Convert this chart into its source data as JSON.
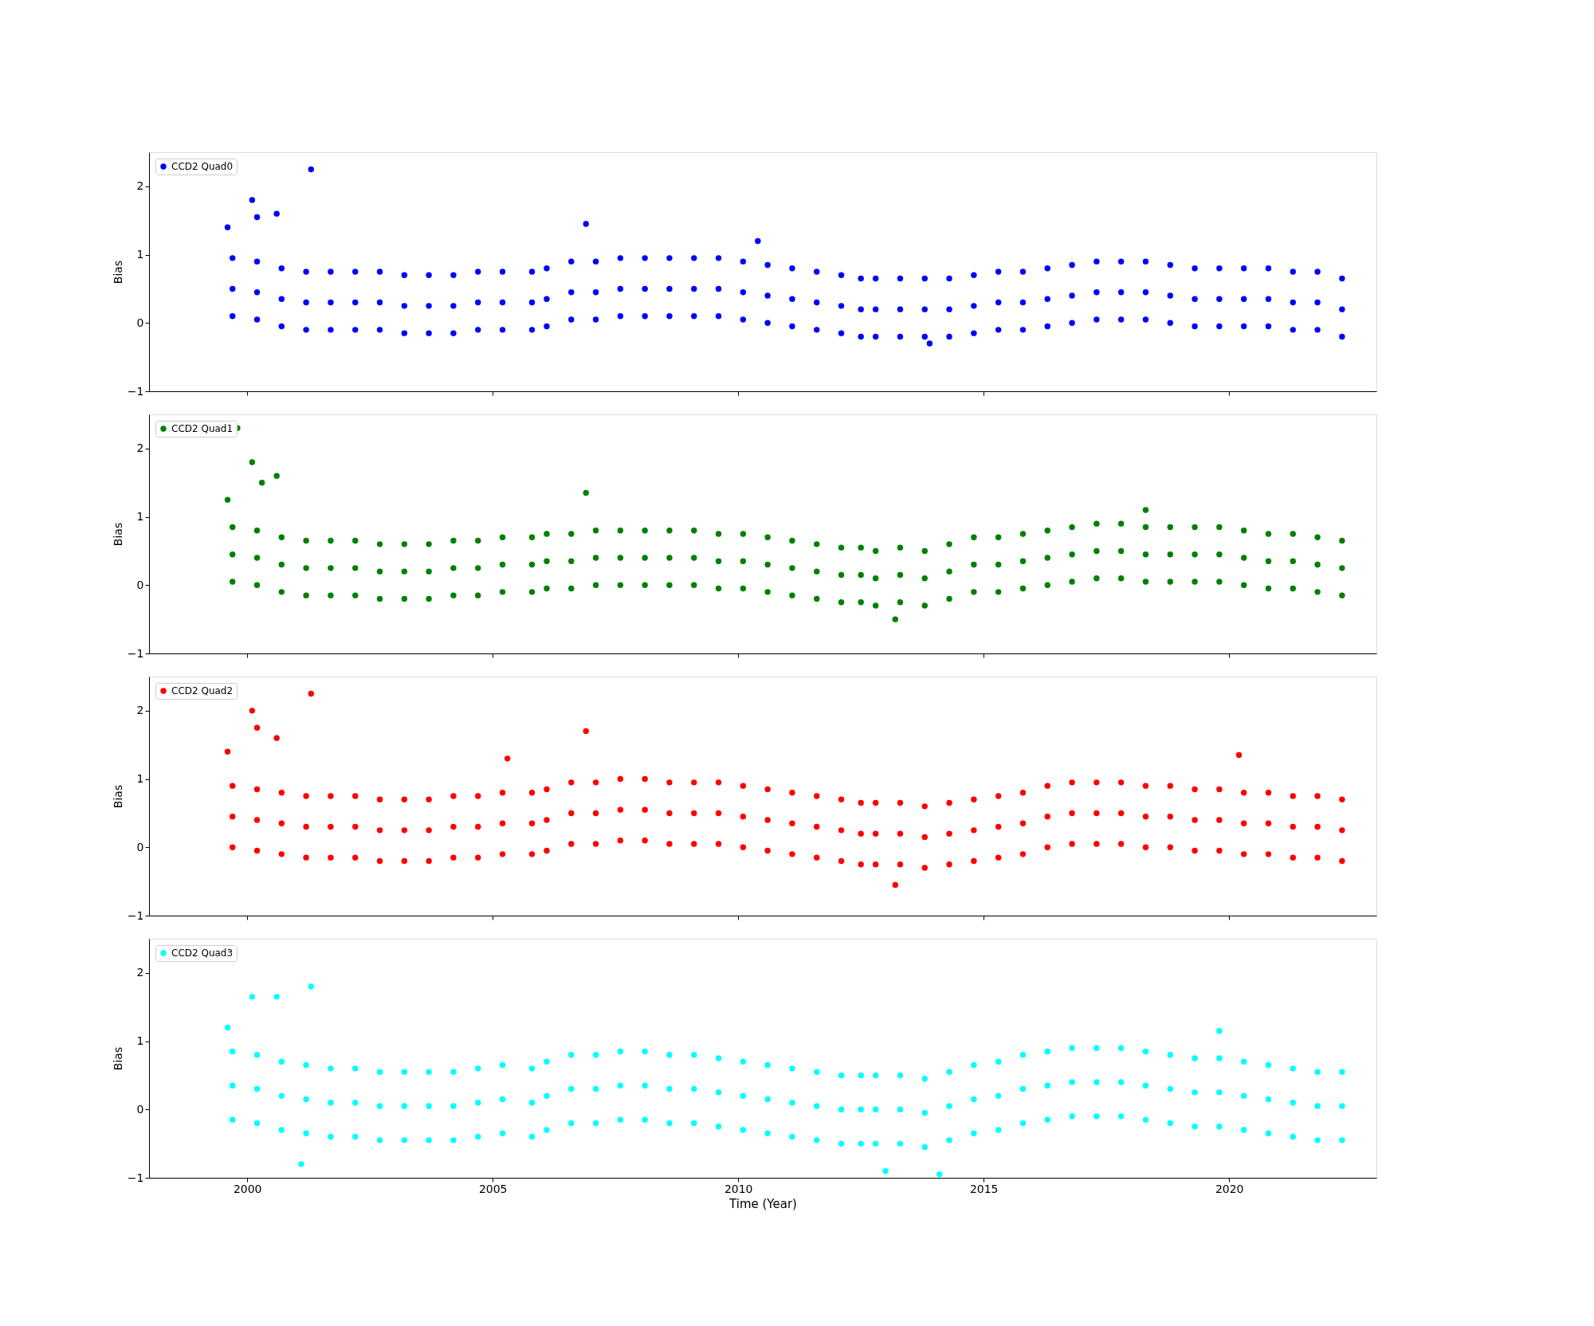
{
  "chart_data": [
    {
      "type": "scatter",
      "ylabel": "Bias",
      "xlim": [
        1998,
        2023
      ],
      "xticks": [
        2000,
        2005,
        2010,
        2015,
        2020
      ],
      "ylim": [
        -1,
        2.5
      ],
      "yticks": [
        -1,
        0,
        1,
        2
      ],
      "grid": false,
      "legend": "top left",
      "marker": "circle",
      "tick_labels": "y",
      "series": [
        {
          "name": "CCD2 Quad0",
          "color": "#0000ff",
          "x": [
            1999.7,
            2000.2,
            2000.7,
            2001.2,
            2001.7,
            2002.2,
            2002.7,
            2003.2,
            2003.7,
            2004.2,
            2004.7,
            2005.2,
            2005.8,
            2006.1,
            2006.6,
            2007.1,
            2007.6,
            2008.1,
            2008.6,
            2009.1,
            2009.6,
            2010.1,
            2010.6,
            2011.1,
            2011.6,
            2012.1,
            2012.5,
            2012.8,
            2013.3,
            2013.8,
            2014.3,
            2014.8,
            2015.3,
            2015.8,
            2016.3,
            2016.8,
            2017.3,
            2017.8,
            2018.3,
            2018.8,
            2019.3,
            2019.8,
            2020.3,
            2020.8,
            2021.3,
            2021.8,
            2022.3,
            1999.7,
            2000.2,
            2000.7,
            2001.2,
            2001.7,
            2002.2,
            2002.7,
            2003.2,
            2003.7,
            2004.2,
            2004.7,
            2005.2,
            2005.8,
            2006.1,
            2006.6,
            2007.1,
            2007.6,
            2008.1,
            2008.6,
            2009.1,
            2009.6,
            2010.1,
            2010.6,
            2011.1,
            2011.6,
            2012.1,
            2012.5,
            2012.8,
            2013.3,
            2013.8,
            2014.3,
            2014.8,
            2015.3,
            2015.8,
            2016.3,
            2016.8,
            2017.3,
            2017.8,
            2018.3,
            2018.8,
            2019.3,
            2019.8,
            2020.3,
            2020.8,
            2021.3,
            2021.8,
            2022.3,
            1999.7,
            2000.2,
            2000.7,
            2001.2,
            2001.7,
            2002.2,
            2002.7,
            2003.2,
            2003.7,
            2004.2,
            2004.7,
            2005.2,
            2005.8,
            2006.1,
            2006.6,
            2007.1,
            2007.6,
            2008.1,
            2008.6,
            2009.1,
            2009.6,
            2010.1,
            2010.6,
            2011.1,
            2011.6,
            2012.1,
            2012.5,
            2012.8,
            2013.3,
            2013.8,
            2014.3,
            2014.8,
            2015.3,
            2015.8,
            2016.3,
            2016.8,
            2017.3,
            2017.8,
            2018.3,
            2018.8,
            2019.3,
            2019.8,
            2020.3,
            2020.8,
            2021.3,
            2021.8,
            2022.3,
            1999.6,
            2000.1,
            2000.2,
            2000.6,
            2001.3,
            2006.9,
            2010.4,
            2013.9
          ],
          "values": [
            0.95,
            0.9,
            0.8,
            0.75,
            0.75,
            0.75,
            0.75,
            0.7,
            0.7,
            0.7,
            0.75,
            0.75,
            0.75,
            0.8,
            0.9,
            0.9,
            0.95,
            0.95,
            0.95,
            0.95,
            0.95,
            0.9,
            0.85,
            0.8,
            0.75,
            0.7,
            0.65,
            0.65,
            0.65,
            0.65,
            0.65,
            0.7,
            0.75,
            0.75,
            0.8,
            0.85,
            0.9,
            0.9,
            0.9,
            0.85,
            0.8,
            0.8,
            0.8,
            0.8,
            0.75,
            0.75,
            0.65,
            0.5,
            0.45,
            0.35,
            0.3,
            0.3,
            0.3,
            0.3,
            0.25,
            0.25,
            0.25,
            0.3,
            0.3,
            0.3,
            0.35,
            0.45,
            0.45,
            0.5,
            0.5,
            0.5,
            0.5,
            0.5,
            0.45,
            0.4,
            0.35,
            0.3,
            0.25,
            0.2,
            0.2,
            0.2,
            0.2,
            0.2,
            0.25,
            0.3,
            0.3,
            0.35,
            0.4,
            0.45,
            0.45,
            0.45,
            0.4,
            0.35,
            0.35,
            0.35,
            0.35,
            0.3,
            0.3,
            0.2,
            0.1,
            0.05,
            -0.05,
            -0.1,
            -0.1,
            -0.1,
            -0.1,
            -0.15,
            -0.15,
            -0.15,
            -0.1,
            -0.1,
            -0.1,
            -0.05,
            0.05,
            0.05,
            0.1,
            0.1,
            0.1,
            0.1,
            0.1,
            0.05,
            0,
            -0.05,
            -0.1,
            -0.15,
            -0.2,
            -0.2,
            -0.2,
            -0.2,
            -0.2,
            -0.15,
            -0.1,
            -0.1,
            -0.05,
            0,
            0.05,
            0.05,
            0.05,
            0,
            -0.05,
            -0.05,
            -0.05,
            -0.05,
            -0.1,
            -0.1,
            -0.2,
            1.4,
            1.8,
            1.55,
            1.6,
            2.25,
            1.45,
            1.2,
            -0.3
          ]
        }
      ]
    },
    {
      "type": "scatter",
      "ylabel": "Bias",
      "xlim": [
        1998,
        2023
      ],
      "xticks": [
        2000,
        2005,
        2010,
        2015,
        2020
      ],
      "ylim": [
        -1,
        2.5
      ],
      "yticks": [
        -1,
        0,
        1,
        2
      ],
      "grid": false,
      "legend": "top left",
      "marker": "circle",
      "tick_labels": "y",
      "series": [
        {
          "name": "CCD2 Quad1",
          "color": "#008000",
          "x": [
            1999.7,
            2000.2,
            2000.7,
            2001.2,
            2001.7,
            2002.2,
            2002.7,
            2003.2,
            2003.7,
            2004.2,
            2004.7,
            2005.2,
            2005.8,
            2006.1,
            2006.6,
            2007.1,
            2007.6,
            2008.1,
            2008.6,
            2009.1,
            2009.6,
            2010.1,
            2010.6,
            2011.1,
            2011.6,
            2012.1,
            2012.5,
            2012.8,
            2013.3,
            2013.8,
            2014.3,
            2014.8,
            2015.3,
            2015.8,
            2016.3,
            2016.8,
            2017.3,
            2017.8,
            2018.3,
            2018.8,
            2019.3,
            2019.8,
            2020.3,
            2020.8,
            2021.3,
            2021.8,
            2022.3,
            1999.7,
            2000.2,
            2000.7,
            2001.2,
            2001.7,
            2002.2,
            2002.7,
            2003.2,
            2003.7,
            2004.2,
            2004.7,
            2005.2,
            2005.8,
            2006.1,
            2006.6,
            2007.1,
            2007.6,
            2008.1,
            2008.6,
            2009.1,
            2009.6,
            2010.1,
            2010.6,
            2011.1,
            2011.6,
            2012.1,
            2012.5,
            2012.8,
            2013.3,
            2013.8,
            2014.3,
            2014.8,
            2015.3,
            2015.8,
            2016.3,
            2016.8,
            2017.3,
            2017.8,
            2018.3,
            2018.8,
            2019.3,
            2019.8,
            2020.3,
            2020.8,
            2021.3,
            2021.8,
            2022.3,
            1999.7,
            2000.2,
            2000.7,
            2001.2,
            2001.7,
            2002.2,
            2002.7,
            2003.2,
            2003.7,
            2004.2,
            2004.7,
            2005.2,
            2005.8,
            2006.1,
            2006.6,
            2007.1,
            2007.6,
            2008.1,
            2008.6,
            2009.1,
            2009.6,
            2010.1,
            2010.6,
            2011.1,
            2011.6,
            2012.1,
            2012.5,
            2012.8,
            2013.3,
            2013.8,
            2014.3,
            2014.8,
            2015.3,
            2015.8,
            2016.3,
            2016.8,
            2017.3,
            2017.8,
            2018.3,
            2018.8,
            2019.3,
            2019.8,
            2020.3,
            2020.8,
            2021.3,
            2021.8,
            2022.3,
            1999.6,
            1999.8,
            2000.1,
            2000.3,
            2000.6,
            2006.9,
            2013.2,
            2018.3
          ],
          "values": [
            0.85,
            0.8,
            0.7,
            0.65,
            0.65,
            0.65,
            0.6,
            0.6,
            0.6,
            0.65,
            0.65,
            0.7,
            0.7,
            0.75,
            0.75,
            0.8,
            0.8,
            0.8,
            0.8,
            0.8,
            0.75,
            0.75,
            0.7,
            0.65,
            0.6,
            0.55,
            0.55,
            0.5,
            0.55,
            0.5,
            0.6,
            0.7,
            0.7,
            0.75,
            0.8,
            0.85,
            0.9,
            0.9,
            0.85,
            0.85,
            0.85,
            0.85,
            0.8,
            0.75,
            0.75,
            0.7,
            0.65,
            0.45,
            0.4,
            0.3,
            0.25,
            0.25,
            0.25,
            0.2,
            0.2,
            0.2,
            0.25,
            0.25,
            0.3,
            0.3,
            0.35,
            0.35,
            0.4,
            0.4,
            0.4,
            0.4,
            0.4,
            0.35,
            0.35,
            0.3,
            0.25,
            0.2,
            0.15,
            0.15,
            0.1,
            0.15,
            0.1,
            0.2,
            0.3,
            0.3,
            0.35,
            0.4,
            0.45,
            0.5,
            0.5,
            0.45,
            0.45,
            0.45,
            0.45,
            0.4,
            0.35,
            0.35,
            0.3,
            0.25,
            0.05,
            0,
            -0.1,
            -0.15,
            -0.15,
            -0.15,
            -0.2,
            -0.2,
            -0.2,
            -0.15,
            -0.15,
            -0.1,
            -0.1,
            -0.05,
            -0.05,
            0,
            0,
            0,
            0,
            0,
            -0.05,
            -0.05,
            -0.1,
            -0.15,
            -0.2,
            -0.25,
            -0.25,
            -0.3,
            -0.25,
            -0.3,
            -0.2,
            -0.1,
            -0.1,
            -0.05,
            0,
            0.05,
            0.1,
            0.1,
            0.05,
            0.05,
            0.05,
            0.05,
            0,
            -0.05,
            -0.05,
            -0.1,
            -0.15,
            1.25,
            2.3,
            1.8,
            1.5,
            1.6,
            1.35,
            -0.5,
            1.1
          ]
        }
      ]
    },
    {
      "type": "scatter",
      "ylabel": "Bias",
      "xlim": [
        1998,
        2023
      ],
      "xticks": [
        2000,
        2005,
        2010,
        2015,
        2020
      ],
      "ylim": [
        -1,
        2.5
      ],
      "yticks": [
        -1,
        0,
        1,
        2
      ],
      "grid": false,
      "legend": "top left",
      "marker": "circle",
      "tick_labels": "y",
      "series": [
        {
          "name": "CCD2 Quad2",
          "color": "#ff0000",
          "x": [
            1999.7,
            2000.2,
            2000.7,
            2001.2,
            2001.7,
            2002.2,
            2002.7,
            2003.2,
            2003.7,
            2004.2,
            2004.7,
            2005.2,
            2005.8,
            2006.1,
            2006.6,
            2007.1,
            2007.6,
            2008.1,
            2008.6,
            2009.1,
            2009.6,
            2010.1,
            2010.6,
            2011.1,
            2011.6,
            2012.1,
            2012.5,
            2012.8,
            2013.3,
            2013.8,
            2014.3,
            2014.8,
            2015.3,
            2015.8,
            2016.3,
            2016.8,
            2017.3,
            2017.8,
            2018.3,
            2018.8,
            2019.3,
            2019.8,
            2020.3,
            2020.8,
            2021.3,
            2021.8,
            2022.3,
            1999.7,
            2000.2,
            2000.7,
            2001.2,
            2001.7,
            2002.2,
            2002.7,
            2003.2,
            2003.7,
            2004.2,
            2004.7,
            2005.2,
            2005.8,
            2006.1,
            2006.6,
            2007.1,
            2007.6,
            2008.1,
            2008.6,
            2009.1,
            2009.6,
            2010.1,
            2010.6,
            2011.1,
            2011.6,
            2012.1,
            2012.5,
            2012.8,
            2013.3,
            2013.8,
            2014.3,
            2014.8,
            2015.3,
            2015.8,
            2016.3,
            2016.8,
            2017.3,
            2017.8,
            2018.3,
            2018.8,
            2019.3,
            2019.8,
            2020.3,
            2020.8,
            2021.3,
            2021.8,
            2022.3,
            1999.7,
            2000.2,
            2000.7,
            2001.2,
            2001.7,
            2002.2,
            2002.7,
            2003.2,
            2003.7,
            2004.2,
            2004.7,
            2005.2,
            2005.8,
            2006.1,
            2006.6,
            2007.1,
            2007.6,
            2008.1,
            2008.6,
            2009.1,
            2009.6,
            2010.1,
            2010.6,
            2011.1,
            2011.6,
            2012.1,
            2012.5,
            2012.8,
            2013.3,
            2013.8,
            2014.3,
            2014.8,
            2015.3,
            2015.8,
            2016.3,
            2016.8,
            2017.3,
            2017.8,
            2018.3,
            2018.8,
            2019.3,
            2019.8,
            2020.3,
            2020.8,
            2021.3,
            2021.8,
            2022.3,
            1999.6,
            2000.1,
            2000.2,
            2000.6,
            2001.3,
            2005.3,
            2006.9,
            2020.2,
            2013.2
          ],
          "values": [
            0.9,
            0.85,
            0.8,
            0.75,
            0.75,
            0.75,
            0.7,
            0.7,
            0.7,
            0.75,
            0.75,
            0.8,
            0.8,
            0.85,
            0.95,
            0.95,
            1,
            1,
            0.95,
            0.95,
            0.95,
            0.9,
            0.85,
            0.8,
            0.75,
            0.7,
            0.65,
            0.65,
            0.65,
            0.6,
            0.65,
            0.7,
            0.75,
            0.8,
            0.9,
            0.95,
            0.95,
            0.95,
            0.9,
            0.9,
            0.85,
            0.85,
            0.8,
            0.8,
            0.75,
            0.75,
            0.7,
            0.45,
            0.4,
            0.35,
            0.3,
            0.3,
            0.3,
            0.25,
            0.25,
            0.25,
            0.3,
            0.3,
            0.35,
            0.35,
            0.4,
            0.5,
            0.5,
            0.55,
            0.55,
            0.5,
            0.5,
            0.5,
            0.45,
            0.4,
            0.35,
            0.3,
            0.25,
            0.2,
            0.2,
            0.2,
            0.15,
            0.2,
            0.25,
            0.3,
            0.35,
            0.45,
            0.5,
            0.5,
            0.5,
            0.45,
            0.45,
            0.4,
            0.4,
            0.35,
            0.35,
            0.3,
            0.3,
            0.25,
            0,
            -0.05,
            -0.1,
            -0.15,
            -0.15,
            -0.15,
            -0.2,
            -0.2,
            -0.2,
            -0.15,
            -0.15,
            -0.1,
            -0.1,
            -0.05,
            0.05,
            0.05,
            0.1,
            0.1,
            0.05,
            0.05,
            0.05,
            0,
            -0.05,
            -0.1,
            -0.15,
            -0.2,
            -0.25,
            -0.25,
            -0.25,
            -0.3,
            -0.25,
            -0.2,
            -0.15,
            -0.1,
            0,
            0.05,
            0.05,
            0.05,
            0,
            0,
            -0.05,
            -0.05,
            -0.1,
            -0.1,
            -0.15,
            -0.15,
            -0.2,
            1.4,
            2.0,
            1.75,
            1.6,
            2.25,
            1.3,
            1.7,
            1.35,
            -0.55
          ]
        }
      ]
    },
    {
      "type": "scatter",
      "ylabel": "Bias",
      "xlabel": "Time (Year)",
      "xlim": [
        1998,
        2023
      ],
      "xticks": [
        2000,
        2005,
        2010,
        2015,
        2020
      ],
      "ylim": [
        -1,
        2.5
      ],
      "yticks": [
        -1,
        0,
        1,
        2
      ],
      "grid": false,
      "legend": "top left",
      "marker": "circle",
      "series": [
        {
          "name": "CCD2 Quad3",
          "color": "#00ffff",
          "x": [
            1999.7,
            2000.2,
            2000.7,
            2001.2,
            2001.7,
            2002.2,
            2002.7,
            2003.2,
            2003.7,
            2004.2,
            2004.7,
            2005.2,
            2005.8,
            2006.1,
            2006.6,
            2007.1,
            2007.6,
            2008.1,
            2008.6,
            2009.1,
            2009.6,
            2010.1,
            2010.6,
            2011.1,
            2011.6,
            2012.1,
            2012.5,
            2012.8,
            2013.3,
            2013.8,
            2014.3,
            2014.8,
            2015.3,
            2015.8,
            2016.3,
            2016.8,
            2017.3,
            2017.8,
            2018.3,
            2018.8,
            2019.3,
            2019.8,
            2020.3,
            2020.8,
            2021.3,
            2021.8,
            2022.3,
            1999.7,
            2000.2,
            2000.7,
            2001.2,
            2001.7,
            2002.2,
            2002.7,
            2003.2,
            2003.7,
            2004.2,
            2004.7,
            2005.2,
            2005.8,
            2006.1,
            2006.6,
            2007.1,
            2007.6,
            2008.1,
            2008.6,
            2009.1,
            2009.6,
            2010.1,
            2010.6,
            2011.1,
            2011.6,
            2012.1,
            2012.5,
            2012.8,
            2013.3,
            2013.8,
            2014.3,
            2014.8,
            2015.3,
            2015.8,
            2016.3,
            2016.8,
            2017.3,
            2017.8,
            2018.3,
            2018.8,
            2019.3,
            2019.8,
            2020.3,
            2020.8,
            2021.3,
            2021.8,
            2022.3,
            1999.7,
            2000.2,
            2000.7,
            2001.2,
            2001.7,
            2002.2,
            2002.7,
            2003.2,
            2003.7,
            2004.2,
            2004.7,
            2005.2,
            2005.8,
            2006.1,
            2006.6,
            2007.1,
            2007.6,
            2008.1,
            2008.6,
            2009.1,
            2009.6,
            2010.1,
            2010.6,
            2011.1,
            2011.6,
            2012.1,
            2012.5,
            2012.8,
            2013.3,
            2013.8,
            2014.3,
            2014.8,
            2015.3,
            2015.8,
            2016.3,
            2016.8,
            2017.3,
            2017.8,
            2018.3,
            2018.8,
            2019.3,
            2019.8,
            2020.3,
            2020.8,
            2021.3,
            2021.8,
            2022.3,
            1999.6,
            2000.1,
            2000.6,
            2001.3,
            2001.1,
            2013.0,
            2014.1,
            2019.8
          ],
          "values": [
            0.85,
            0.8,
            0.7,
            0.65,
            0.6,
            0.6,
            0.55,
            0.55,
            0.55,
            0.55,
            0.6,
            0.65,
            0.6,
            0.7,
            0.8,
            0.8,
            0.85,
            0.85,
            0.8,
            0.8,
            0.75,
            0.7,
            0.65,
            0.6,
            0.55,
            0.5,
            0.5,
            0.5,
            0.5,
            0.45,
            0.55,
            0.65,
            0.7,
            0.8,
            0.85,
            0.9,
            0.9,
            0.9,
            0.85,
            0.8,
            0.75,
            0.75,
            0.7,
            0.65,
            0.6,
            0.55,
            0.55,
            0.35,
            0.3,
            0.2,
            0.15,
            0.1,
            0.1,
            0.05,
            0.05,
            0.05,
            0.05,
            0.1,
            0.15,
            0.1,
            0.2,
            0.3,
            0.3,
            0.35,
            0.35,
            0.3,
            0.3,
            0.25,
            0.2,
            0.15,
            0.1,
            0.05,
            0,
            0,
            0,
            0,
            -0.05,
            0.05,
            0.15,
            0.2,
            0.3,
            0.35,
            0.4,
            0.4,
            0.4,
            0.35,
            0.3,
            0.25,
            0.25,
            0.2,
            0.15,
            0.1,
            0.05,
            0.05,
            -0.15,
            -0.2,
            -0.3,
            -0.35,
            -0.4,
            -0.4,
            -0.45,
            -0.45,
            -0.45,
            -0.45,
            -0.4,
            -0.35,
            -0.4,
            -0.3,
            -0.2,
            -0.2,
            -0.15,
            -0.15,
            -0.2,
            -0.2,
            -0.25,
            -0.3,
            -0.35,
            -0.4,
            -0.45,
            -0.5,
            -0.5,
            -0.5,
            -0.5,
            -0.55,
            -0.45,
            -0.35,
            -0.3,
            -0.2,
            -0.15,
            -0.1,
            -0.1,
            -0.1,
            -0.15,
            -0.2,
            -0.25,
            -0.25,
            -0.3,
            -0.35,
            -0.4,
            -0.45,
            -0.45,
            1.2,
            1.65,
            1.65,
            1.8,
            -0.8,
            -0.9,
            -0.95,
            1.15
          ]
        }
      ]
    }
  ]
}
